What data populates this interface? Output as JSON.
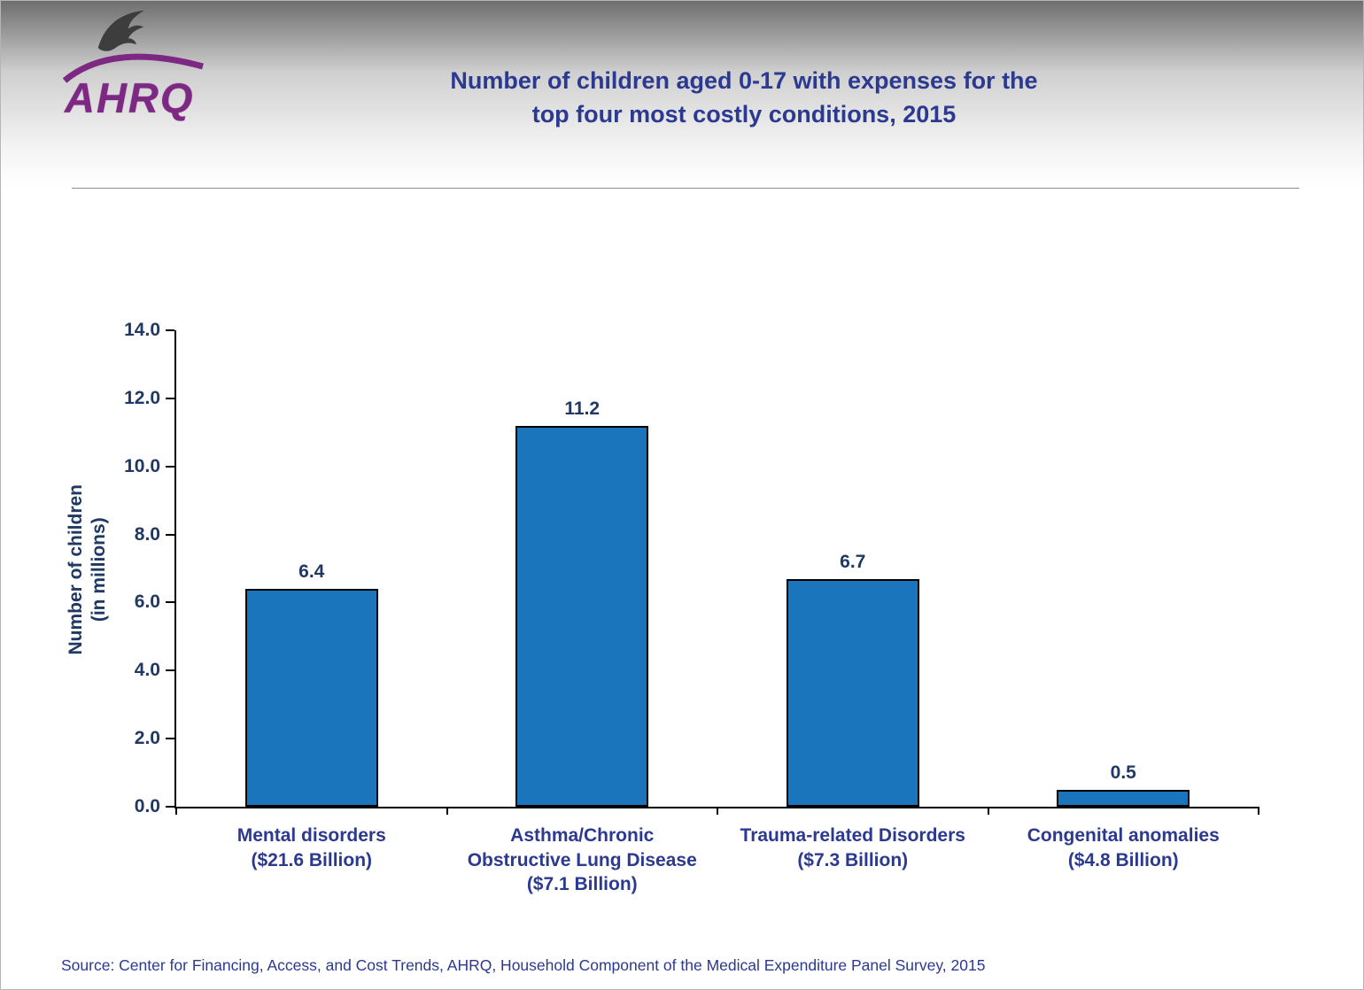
{
  "header": {
    "logo_text": "AHRQ",
    "title_line1": "Number of children aged 0-17 with expenses for the",
    "title_line2": "top four most costly conditions, 2015"
  },
  "colors": {
    "title_blue": "#2B3990",
    "axis_text": "#1F3864",
    "bar_fill": "#1B75BC",
    "bar_border": "#000000",
    "brand_purple": "#7D2882",
    "source_text": "#2B3990",
    "header_gradient_top": "#6E6E6E"
  },
  "chart_data": {
    "type": "bar",
    "title": "Number of children aged 0-17 with expenses for the top four most costly conditions, 2015",
    "categories": [
      [
        "Mental disorders",
        "($21.6 Billion)"
      ],
      [
        "Asthma/Chronic",
        "Obstructive Lung Disease",
        "($7.1 Billion)"
      ],
      [
        "Trauma-related Disorders",
        "($7.3 Billion)"
      ],
      [
        "Congenital anomalies",
        "($4.8 Billion)"
      ]
    ],
    "values": [
      6.4,
      11.2,
      6.7,
      0.5
    ],
    "value_labels": [
      "6.4",
      "11.2",
      "6.7",
      "0.5"
    ],
    "ylabel": "Number of children (in millions)",
    "ylabel_line1": "Number of children",
    "ylabel_line2": "(in millions)",
    "ylim": [
      0,
      14
    ],
    "ytick_step": 2,
    "yticks": [
      "14.0",
      "12.0",
      "10.0",
      "8.0",
      "6.0",
      "4.0",
      "2.0",
      "0.0"
    ],
    "grid": false,
    "legend": false
  },
  "footer": {
    "source": "Source: Center for Financing, Access, and Cost Trends, AHRQ, Household Component of the Medical Expenditure Panel Survey, 2015"
  }
}
